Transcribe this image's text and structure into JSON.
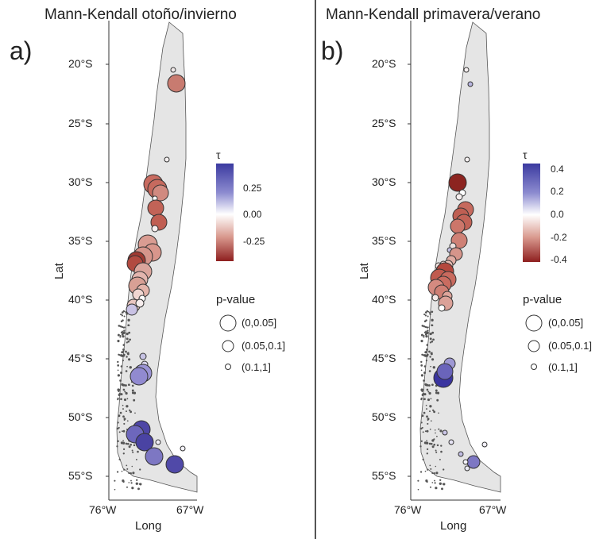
{
  "panels": [
    {
      "id": "a",
      "letter": "a)",
      "title": "Mann-Kendall  otoño/invierno",
      "ylabel": "Lat",
      "xlabel": "Long",
      "lat_ticks": [
        "20°S",
        "25°S",
        "30°S",
        "35°S",
        "40°S",
        "45°S",
        "50°S",
        "55°S"
      ],
      "lon_ticks": [
        "76°W",
        "67°W"
      ],
      "tau_legend": {
        "title": "τ",
        "labels": [
          "0.25",
          "0.00",
          "-0.25"
        ]
      },
      "pvalue_legend": {
        "title": "p-value",
        "labels": [
          "(0,0.05]",
          "(0.05,0.1]",
          "(0.1,1]"
        ]
      }
    },
    {
      "id": "b",
      "letter": "b)",
      "title": "Mann-Kendall primavera/verano",
      "ylabel": "Lat",
      "xlabel": "Long",
      "lat_ticks": [
        "20°S",
        "25°S",
        "30°S",
        "35°S",
        "40°S",
        "45°S",
        "50°S",
        "55°S"
      ],
      "lon_ticks": [
        "76°W",
        "67°W"
      ],
      "tau_legend": {
        "title": "τ",
        "labels": [
          "0.4",
          "0.2",
          "0.0",
          "-0.2",
          "-0.4"
        ]
      },
      "pvalue_legend": {
        "title": "p-value",
        "labels": [
          "(0,0.05]",
          "(0.05,0.1]",
          "(0.1,1]"
        ]
      }
    }
  ],
  "colors": {
    "positive": "#3b3aa0",
    "neutral": "#ffffff",
    "negative": "#8e1f1f",
    "land": "#e5e5e5",
    "coast": "#555555"
  }
}
